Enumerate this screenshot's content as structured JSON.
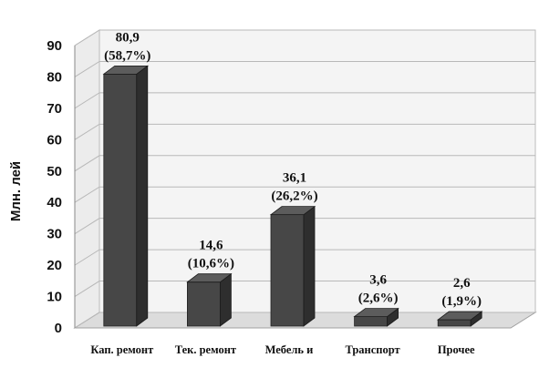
{
  "chart_data": {
    "type": "bar",
    "categories": [
      "Кап. ремонт",
      "Тек. ремонт",
      "Мебель и",
      "Транспорт",
      "Прочее"
    ],
    "values": [
      80.9,
      14.6,
      36.1,
      3.6,
      2.6
    ],
    "value_labels": [
      "80,9",
      "14,6",
      "36,1",
      "3,6",
      "2,6"
    ],
    "percent_labels": [
      "(58,7%)",
      "(10,6%)",
      "(26,2%)",
      "(2,6%)",
      "(1,9%)"
    ],
    "title": "",
    "xlabel": "",
    "ylabel": "Млн. лей",
    "ylim": [
      0,
      90
    ],
    "yticks": [
      0,
      10,
      20,
      30,
      40,
      50,
      60,
      70,
      80,
      90
    ],
    "grid": true,
    "style": "3d",
    "bar_color": "#4a4a4a"
  }
}
